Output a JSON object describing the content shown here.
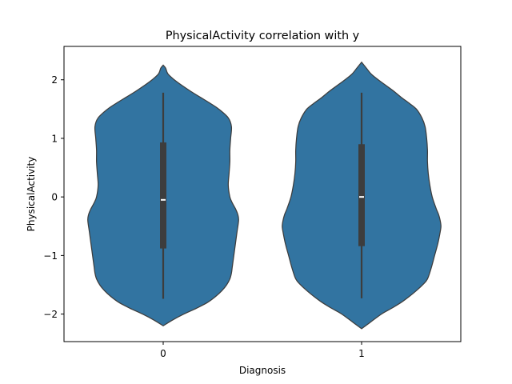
{
  "chart_data": {
    "type": "violin",
    "title": "PhysicalActivity correlation with y",
    "xlabel": "Diagnosis",
    "ylabel": "PhysicalActivity",
    "categories": [
      "0",
      "1"
    ],
    "ylim": [
      -2.47,
      2.57
    ],
    "yticks": [
      -2,
      -1,
      0,
      1,
      2
    ],
    "ytick_labels": [
      "−2",
      "−1",
      "0",
      "1",
      "2"
    ],
    "grid": false,
    "legend": "none",
    "colors": {
      "violin": "#3274a1",
      "outline": "#3d3d3d",
      "box": "#3d3d3d",
      "median": "#ffffff"
    },
    "violins": [
      {
        "category": "0",
        "median": -0.05,
        "q1": -0.88,
        "q3": 0.93,
        "whisker_low": -1.74,
        "whisker_high": 1.78,
        "min": -2.2,
        "max": 2.25,
        "profile": [
          [
            -2.2,
            0.0
          ],
          [
            -2.1,
            0.12
          ],
          [
            -2.0,
            0.26
          ],
          [
            -1.9,
            0.42
          ],
          [
            -1.8,
            0.56
          ],
          [
            -1.7,
            0.66
          ],
          [
            -1.6,
            0.74
          ],
          [
            -1.5,
            0.8
          ],
          [
            -1.4,
            0.84
          ],
          [
            -1.3,
            0.86
          ],
          [
            -1.2,
            0.87
          ],
          [
            -1.1,
            0.88
          ],
          [
            -1.0,
            0.89
          ],
          [
            -0.9,
            0.9
          ],
          [
            -0.8,
            0.91
          ],
          [
            -0.6,
            0.93
          ],
          [
            -0.4,
            0.95
          ],
          [
            -0.3,
            0.94
          ],
          [
            -0.2,
            0.91
          ],
          [
            -0.1,
            0.87
          ],
          [
            0.0,
            0.84
          ],
          [
            0.2,
            0.82
          ],
          [
            0.4,
            0.83
          ],
          [
            0.6,
            0.84
          ],
          [
            0.8,
            0.84
          ],
          [
            1.0,
            0.85
          ],
          [
            1.2,
            0.86
          ],
          [
            1.35,
            0.82
          ],
          [
            1.5,
            0.7
          ],
          [
            1.6,
            0.59
          ],
          [
            1.7,
            0.47
          ],
          [
            1.8,
            0.35
          ],
          [
            1.9,
            0.24
          ],
          [
            2.0,
            0.14
          ],
          [
            2.1,
            0.06
          ],
          [
            2.2,
            0.03
          ],
          [
            2.25,
            0.0
          ]
        ]
      },
      {
        "category": "1",
        "median": 0.0,
        "q1": -0.84,
        "q3": 0.9,
        "whisker_low": -1.73,
        "whisker_high": 1.78,
        "min": -2.25,
        "max": 2.3,
        "profile": [
          [
            -2.25,
            0.0
          ],
          [
            -2.15,
            0.1
          ],
          [
            -2.0,
            0.25
          ],
          [
            -1.9,
            0.38
          ],
          [
            -1.8,
            0.5
          ],
          [
            -1.7,
            0.6
          ],
          [
            -1.6,
            0.69
          ],
          [
            -1.5,
            0.77
          ],
          [
            -1.4,
            0.83
          ],
          [
            -1.2,
            0.88
          ],
          [
            -1.0,
            0.92
          ],
          [
            -0.8,
            0.96
          ],
          [
            -0.6,
            0.99
          ],
          [
            -0.5,
            1.0
          ],
          [
            -0.4,
            0.99
          ],
          [
            -0.3,
            0.97
          ],
          [
            -0.2,
            0.94
          ],
          [
            0.0,
            0.89
          ],
          [
            0.2,
            0.86
          ],
          [
            0.4,
            0.84
          ],
          [
            0.6,
            0.83
          ],
          [
            0.8,
            0.83
          ],
          [
            1.0,
            0.82
          ],
          [
            1.2,
            0.8
          ],
          [
            1.35,
            0.76
          ],
          [
            1.5,
            0.69
          ],
          [
            1.6,
            0.6
          ],
          [
            1.7,
            0.5
          ],
          [
            1.8,
            0.41
          ],
          [
            1.9,
            0.31
          ],
          [
            2.0,
            0.21
          ],
          [
            2.1,
            0.12
          ],
          [
            2.2,
            0.06
          ],
          [
            2.3,
            0.0
          ]
        ]
      }
    ]
  }
}
